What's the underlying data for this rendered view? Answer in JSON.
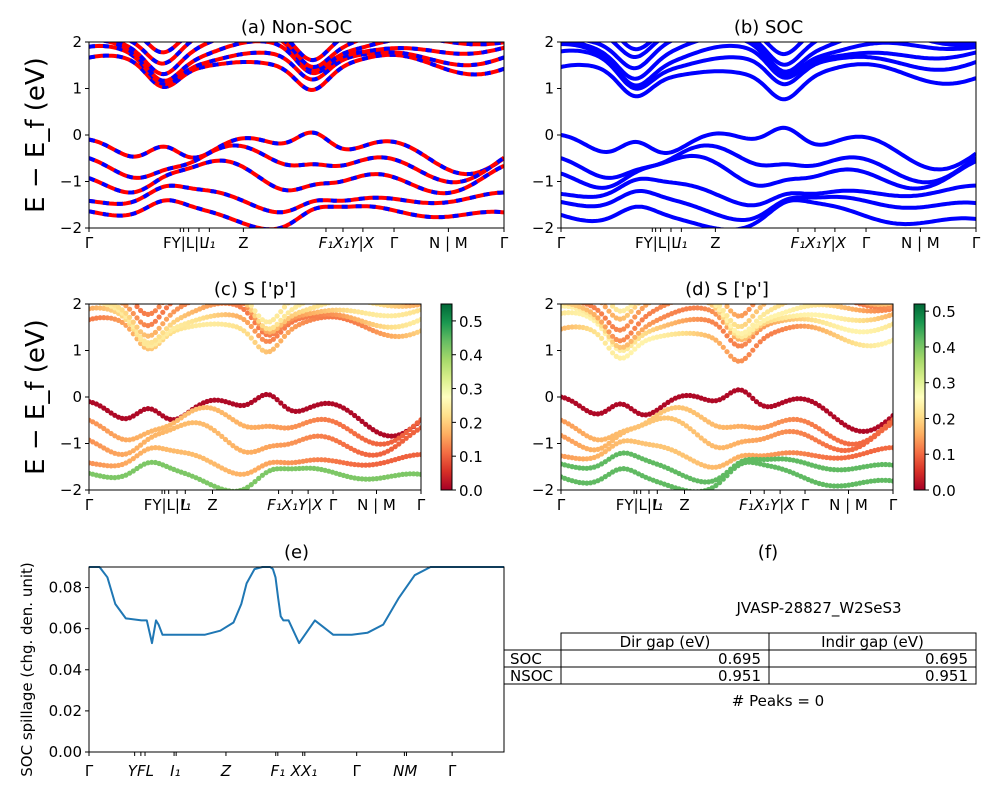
{
  "chart_data": [
    {
      "panel": "a",
      "type": "line",
      "title": "(a) Non-SOC",
      "ylabel": "E − E_f (eV)",
      "ylim": [
        -2,
        2
      ],
      "yticks": [
        -2,
        -1,
        0,
        1,
        2
      ],
      "xticks": [
        "Γ",
        "F",
        "Y|L",
        "L",
        "I",
        "I₁",
        "Z",
        "F₁",
        "X₁",
        "Y|X",
        "Γ",
        "N|M",
        "Γ"
      ],
      "xtick_labels_text": [
        "Γ",
        "FY|L|L",
        "I₁",
        "Z",
        "F₁X₁Y|X",
        "Γ",
        "N | M",
        "Γ"
      ],
      "series": [
        {
          "name": "spin-up",
          "color": "#ff0000",
          "style": "solid"
        },
        {
          "name": "spin-down",
          "color": "#0000ff",
          "style": "dashed"
        }
      ],
      "features": {
        "cbm_min": 0.95,
        "vbm_max": 0.0
      }
    },
    {
      "panel": "b",
      "type": "line",
      "title": "(b) SOC",
      "ylim": [
        -2,
        2
      ],
      "yticks": [
        -2,
        -1,
        0,
        1,
        2
      ],
      "xtick_labels_text": [
        "Γ",
        "FY|L|L",
        "I₁",
        "Z",
        "F₁X₁Y|X",
        "Γ",
        "N | M",
        "Γ"
      ],
      "series": [
        {
          "name": "bands",
          "color": "#0000ff",
          "style": "solid"
        }
      ],
      "features": {
        "cbm_min": 0.7,
        "vbm_max": 0.0
      }
    },
    {
      "panel": "c",
      "type": "scatter",
      "title": "(c)  S ['p']",
      "ylabel": "E − E_f (eV)",
      "ylim": [
        -2,
        2
      ],
      "yticks": [
        -2,
        -1,
        0,
        1,
        2
      ],
      "xtick_labels_text": [
        "Γ",
        "FY|L|L",
        "I₁",
        "Z",
        "F₁X₁Y|X",
        "Γ",
        "N | M",
        "Γ"
      ],
      "colorbar": {
        "cmap": "RdYlGn",
        "range": [
          0,
          0.55
        ],
        "ticks": [
          "0.0",
          "0.1",
          "0.2",
          "0.3",
          "0.4",
          "0.5"
        ]
      }
    },
    {
      "panel": "d",
      "type": "scatter",
      "title": "(d) S ['p']",
      "ylim": [
        -2,
        2
      ],
      "yticks": [
        -2,
        -1,
        0,
        1,
        2
      ],
      "xtick_labels_text": [
        "Γ",
        "FY|L|L",
        "I₁",
        "Z",
        "F₁X₁Y|X",
        "Γ",
        "N | M",
        "Γ"
      ],
      "colorbar": {
        "cmap": "RdYlGn",
        "range": [
          0,
          0.52
        ],
        "ticks": [
          "0.0",
          "0.1",
          "0.2",
          "0.3",
          "0.4",
          "0.5"
        ]
      }
    },
    {
      "panel": "e",
      "type": "line",
      "title": "(e)",
      "ylabel": "SOC spillage (chg. den. unit)",
      "ylim": [
        0,
        0.09
      ],
      "yticks": [
        "0.00",
        "0.02",
        "0.04",
        "0.06",
        "0.08"
      ],
      "xticks": [
        "Γ",
        "Y",
        "F",
        "L",
        "I",
        "I₁",
        "Z",
        "F₁",
        "Y₁",
        "X",
        "X₁",
        "Γ",
        "N",
        "M",
        "Γ"
      ],
      "x": [
        0,
        0.04,
        0.07,
        0.1,
        0.14,
        0.2,
        0.22,
        0.24,
        0.255,
        0.265,
        0.28,
        0.32,
        0.4,
        0.44,
        0.5,
        0.55,
        0.58,
        0.6,
        0.63,
        0.66,
        0.69,
        0.7,
        0.71,
        0.72,
        0.73,
        0.74,
        0.76,
        0.8,
        0.86,
        0.93,
        1.0,
        1.06,
        1.12,
        1.18,
        1.24,
        1.3,
        1.35,
        1.4,
        1.46,
        1.52,
        1.58
      ],
      "series": [
        {
          "name": "spillage",
          "color": "#1f77b4",
          "values": [
            0.09,
            0.09,
            0.085,
            0.072,
            0.065,
            0.064,
            0.064,
            0.053,
            0.064,
            0.062,
            0.057,
            0.057,
            0.057,
            0.057,
            0.059,
            0.063,
            0.072,
            0.082,
            0.089,
            0.09,
            0.09,
            0.089,
            0.085,
            0.075,
            0.066,
            0.064,
            0.064,
            0.053,
            0.064,
            0.057,
            0.057,
            0.058,
            0.062,
            0.075,
            0.086,
            0.09,
            0.09,
            0.09,
            0.09,
            0.09,
            0.09
          ]
        }
      ]
    },
    {
      "panel": "f",
      "type": "table",
      "title": "(f)",
      "caption": "JVASP-28827_W2SeS3",
      "columns": [
        "",
        "Dir gap (eV)",
        "Indir gap (eV)"
      ],
      "rows": [
        [
          "SOC",
          "0.695",
          "0.695"
        ],
        [
          "NSOC",
          "0.951",
          "0.951"
        ]
      ],
      "footer": "# Peaks = 0"
    }
  ]
}
